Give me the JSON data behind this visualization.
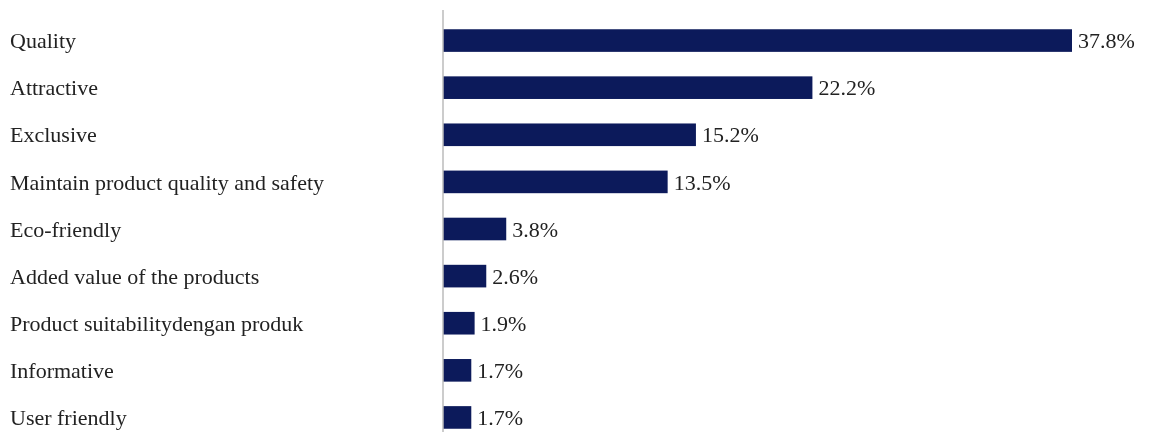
{
  "chart_data": {
    "type": "bar",
    "orientation": "horizontal",
    "categories": [
      "Quality",
      "Attractive",
      "Exclusive",
      "Maintain product quality and safety",
      "Eco-friendly",
      "Added value of the products",
      "Product suitabilitydengan produk",
      "Informative",
      "User friendly"
    ],
    "values": [
      37.8,
      22.2,
      15.2,
      13.5,
      3.8,
      2.6,
      1.9,
      1.7,
      1.7
    ],
    "value_labels": [
      "37.8%",
      "22.2%",
      "15.2%",
      "13.5%",
      "3.8%",
      "2.6%",
      "1.9%",
      "1.7%",
      "1.7%"
    ],
    "color": "#0c1a5b"
  }
}
